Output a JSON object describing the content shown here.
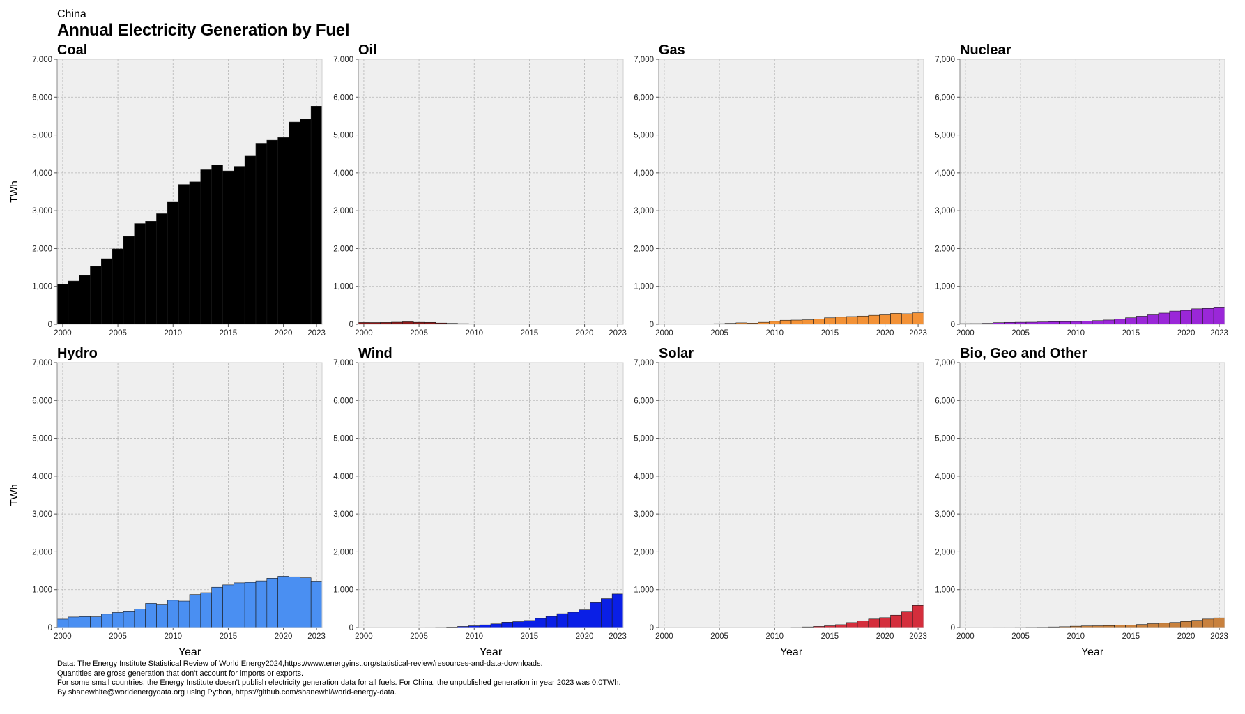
{
  "header": {
    "country": "China",
    "title": "Annual Electricity Generation by Fuel"
  },
  "footer": {
    "lines": [
      "Data: The Energy Institute Statistical Review of World Energy2024,https://www.energyinst.org/statistical-review/resources-and-data-downloads.",
      "Quantities are gross generation that don't account for imports or exports.",
      "For some small countries, the Energy Institute doesn't publish electricity generation data for all fuels. For China, the unpublished generation in year 2023 was 0.0TWh.",
      "By shanewhite@worldenergydata.org using Python, https://github.com/shanewhi/world-energy-data."
    ]
  },
  "chart_data": [
    {
      "type": "bar",
      "title": "Coal",
      "ylabel": "TWh",
      "xlabel": "",
      "color": "#000000",
      "x": [
        2000,
        2001,
        2002,
        2003,
        2004,
        2005,
        2006,
        2007,
        2008,
        2009,
        2010,
        2011,
        2012,
        2013,
        2014,
        2015,
        2016,
        2017,
        2018,
        2019,
        2020,
        2021,
        2022,
        2023
      ],
      "values": [
        1060,
        1140,
        1290,
        1530,
        1730,
        1990,
        2320,
        2660,
        2720,
        2920,
        3240,
        3690,
        3760,
        4080,
        4210,
        4050,
        4170,
        4440,
        4780,
        4860,
        4930,
        5340,
        5420,
        5760
      ],
      "xticks": [
        2000,
        2005,
        2010,
        2015,
        2020,
        2023
      ],
      "yticks": [
        0,
        1000,
        2000,
        3000,
        4000,
        5000,
        6000,
        7000
      ],
      "xlim": [
        1999.5,
        2023.5
      ],
      "ylim": [
        0,
        7000
      ],
      "grid": true
    },
    {
      "type": "bar",
      "title": "Oil",
      "ylabel": "",
      "xlabel": "",
      "color": "#8b1a1a",
      "x": [
        2000,
        2001,
        2002,
        2003,
        2004,
        2005,
        2006,
        2007,
        2008,
        2009,
        2010,
        2011,
        2012,
        2013,
        2014,
        2015,
        2016,
        2017,
        2018,
        2019,
        2020,
        2021,
        2022,
        2023
      ],
      "values": [
        47,
        46,
        48,
        55,
        65,
        52,
        50,
        33,
        24,
        16,
        13,
        8,
        6,
        5,
        5,
        4,
        4,
        4,
        4,
        4,
        4,
        4,
        4,
        4
      ],
      "xticks": [
        2000,
        2005,
        2010,
        2015,
        2020,
        2023
      ],
      "yticks": [
        0,
        1000,
        2000,
        3000,
        4000,
        5000,
        6000,
        7000
      ],
      "xlim": [
        1999.5,
        2023.5
      ],
      "ylim": [
        0,
        7000
      ],
      "grid": true
    },
    {
      "type": "bar",
      "title": "Gas",
      "ylabel": "",
      "xlabel": "",
      "color": "#f39237",
      "x": [
        2000,
        2001,
        2002,
        2003,
        2004,
        2005,
        2006,
        2007,
        2008,
        2009,
        2010,
        2011,
        2012,
        2013,
        2014,
        2015,
        2016,
        2017,
        2018,
        2019,
        2020,
        2021,
        2022,
        2023
      ],
      "values": [
        5,
        5,
        6,
        8,
        12,
        15,
        25,
        38,
        31,
        52,
        78,
        106,
        110,
        117,
        136,
        170,
        188,
        203,
        216,
        236,
        248,
        287,
        277,
        300
      ],
      "xticks": [
        2000,
        2005,
        2010,
        2015,
        2020,
        2023
      ],
      "yticks": [
        0,
        1000,
        2000,
        3000,
        4000,
        5000,
        6000,
        7000
      ],
      "xlim": [
        1999.5,
        2023.5
      ],
      "ylim": [
        0,
        7000
      ],
      "grid": true
    },
    {
      "type": "bar",
      "title": "Nuclear",
      "ylabel": "",
      "xlabel": "",
      "color": "#9a27d8",
      "x": [
        2000,
        2001,
        2002,
        2003,
        2004,
        2005,
        2006,
        2007,
        2008,
        2009,
        2010,
        2011,
        2012,
        2013,
        2014,
        2015,
        2016,
        2017,
        2018,
        2019,
        2020,
        2021,
        2022,
        2023
      ],
      "values": [
        17,
        18,
        25,
        43,
        50,
        53,
        55,
        62,
        68,
        70,
        74,
        86,
        97,
        112,
        133,
        171,
        213,
        248,
        295,
        348,
        366,
        408,
        418,
        435
      ],
      "xticks": [
        2000,
        2005,
        2010,
        2015,
        2020,
        2023
      ],
      "yticks": [
        0,
        1000,
        2000,
        3000,
        4000,
        5000,
        6000,
        7000
      ],
      "xlim": [
        1999.5,
        2023.5
      ],
      "ylim": [
        0,
        7000
      ],
      "grid": true
    },
    {
      "type": "bar",
      "title": "Hydro",
      "ylabel": "TWh",
      "xlabel": "Year",
      "color": "#4a8ff2",
      "x": [
        2000,
        2001,
        2002,
        2003,
        2004,
        2005,
        2006,
        2007,
        2008,
        2009,
        2010,
        2011,
        2012,
        2013,
        2014,
        2015,
        2016,
        2017,
        2018,
        2019,
        2020,
        2021,
        2022,
        2023
      ],
      "values": [
        222,
        278,
        288,
        284,
        354,
        397,
        436,
        485,
        637,
        616,
        722,
        699,
        872,
        920,
        1064,
        1126,
        1181,
        1194,
        1232,
        1302,
        1355,
        1340,
        1314,
        1226
      ],
      "xticks": [
        2000,
        2005,
        2010,
        2015,
        2020,
        2023
      ],
      "yticks": [
        0,
        1000,
        2000,
        3000,
        4000,
        5000,
        6000,
        7000
      ],
      "xlim": [
        1999.5,
        2023.5
      ],
      "ylim": [
        0,
        7000
      ],
      "grid": true
    },
    {
      "type": "bar",
      "title": "Wind",
      "ylabel": "",
      "xlabel": "Year",
      "color": "#0a1fe6",
      "x": [
        2000,
        2001,
        2002,
        2003,
        2004,
        2005,
        2006,
        2007,
        2008,
        2009,
        2010,
        2011,
        2012,
        2013,
        2014,
        2015,
        2016,
        2017,
        2018,
        2019,
        2020,
        2021,
        2022,
        2023
      ],
      "values": [
        1,
        1,
        1,
        1,
        1,
        2,
        4,
        6,
        13,
        28,
        45,
        70,
        96,
        141,
        156,
        186,
        241,
        295,
        366,
        406,
        467,
        656,
        763,
        886
      ],
      "xticks": [
        2000,
        2005,
        2010,
        2015,
        2020,
        2023
      ],
      "yticks": [
        0,
        1000,
        2000,
        3000,
        4000,
        5000,
        6000,
        7000
      ],
      "xlim": [
        1999.5,
        2023.5
      ],
      "ylim": [
        0,
        7000
      ],
      "grid": true
    },
    {
      "type": "bar",
      "title": "Solar",
      "ylabel": "",
      "xlabel": "Year",
      "color": "#d42e3c",
      "x": [
        2000,
        2001,
        2002,
        2003,
        2004,
        2005,
        2006,
        2007,
        2008,
        2009,
        2010,
        2011,
        2012,
        2013,
        2014,
        2015,
        2016,
        2017,
        2018,
        2019,
        2020,
        2021,
        2022,
        2023
      ],
      "values": [
        0,
        0,
        0,
        0,
        0,
        0,
        0,
        0,
        0,
        0,
        1,
        3,
        6,
        15,
        29,
        45,
        75,
        131,
        179,
        225,
        261,
        327,
        428,
        584
      ],
      "xticks": [
        2000,
        2005,
        2010,
        2015,
        2020,
        2023
      ],
      "yticks": [
        0,
        1000,
        2000,
        3000,
        4000,
        5000,
        6000,
        7000
      ],
      "xlim": [
        1999.5,
        2023.5
      ],
      "ylim": [
        0,
        7000
      ],
      "grid": true
    },
    {
      "type": "bar",
      "title": "Bio, Geo and Other",
      "ylabel": "",
      "xlabel": "Year",
      "color": "#c8813e",
      "x": [
        2000,
        2001,
        2002,
        2003,
        2004,
        2005,
        2006,
        2007,
        2008,
        2009,
        2010,
        2011,
        2012,
        2013,
        2014,
        2015,
        2016,
        2017,
        2018,
        2019,
        2020,
        2021,
        2022,
        2023
      ],
      "values": [
        2,
        3,
        3,
        4,
        4,
        5,
        7,
        9,
        15,
        21,
        34,
        42,
        45,
        51,
        62,
        68,
        80,
        101,
        115,
        134,
        160,
        190,
        224,
        254
      ],
      "xticks": [
        2000,
        2005,
        2010,
        2015,
        2020,
        2023
      ],
      "yticks": [
        0,
        1000,
        2000,
        3000,
        4000,
        5000,
        6000,
        7000
      ],
      "xlim": [
        1999.5,
        2023.5
      ],
      "ylim": [
        0,
        7000
      ],
      "grid": true
    }
  ]
}
